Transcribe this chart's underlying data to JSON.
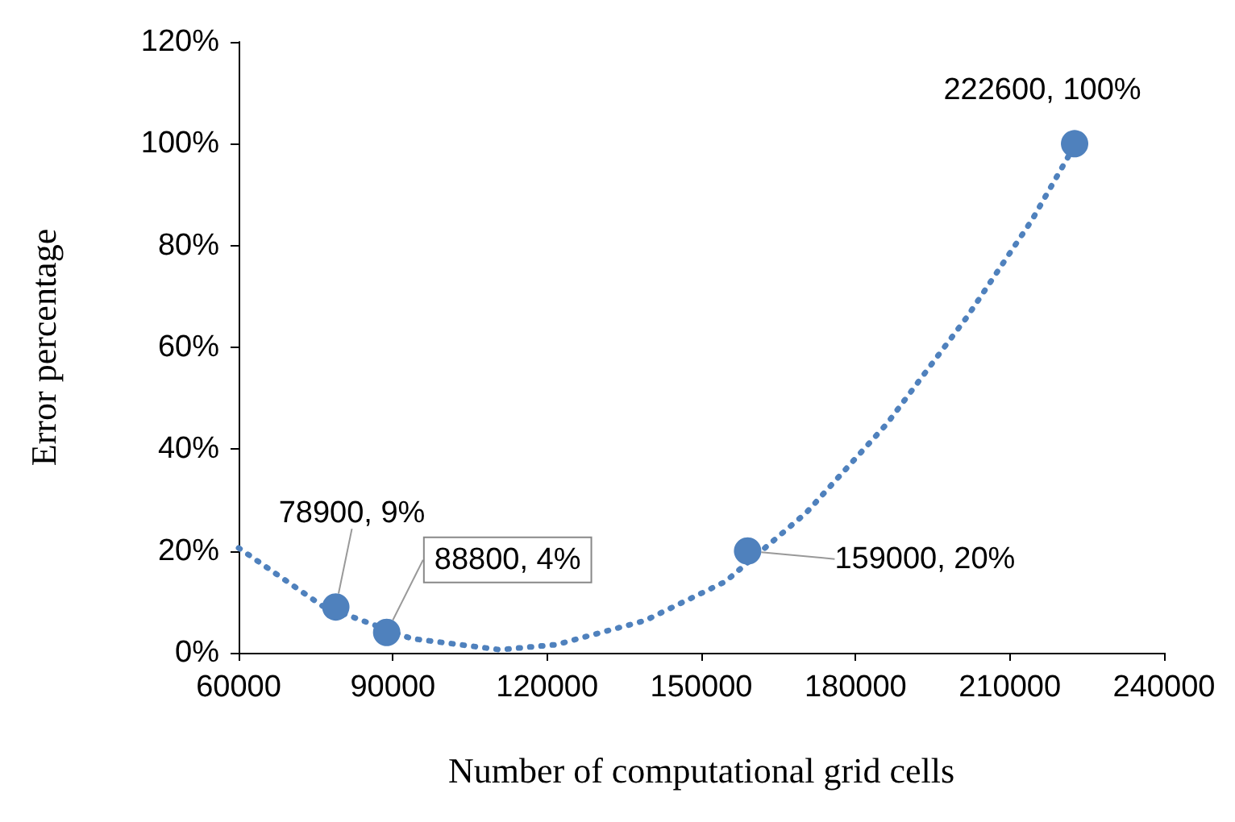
{
  "chart_data": {
    "type": "scatter",
    "xlabel": "Number of computational grid cells",
    "ylabel": "Error percentage",
    "series": [
      {
        "type": "line",
        "color": "#4f81bd",
        "line_style": "dotted",
        "marker": "none",
        "x": [
          60000,
          76300,
          93550,
          110800,
          121800,
          139000,
          154700,
          170400,
          186100,
          201700,
          214300,
          222800
        ],
        "values": [
          20.6,
          9.2,
          2.8,
          0.6,
          1.6,
          6.3,
          14,
          27.5,
          45,
          66,
          85,
          100
        ]
      },
      {
        "color": "#4f81bd",
        "marker": "circle",
        "x": [
          78900,
          88800,
          159000,
          222600
        ],
        "values": [
          9,
          4,
          20,
          100
        ],
        "value_labels": [
          "78900, 9%",
          "88800, 4%",
          "159000, 20%",
          "222600, 100%"
        ]
      }
    ],
    "xlim": [
      60000,
      240000
    ],
    "xticks": [
      60000,
      90000,
      120000,
      150000,
      180000,
      210000,
      240000
    ],
    "ylim": [
      0,
      120
    ],
    "yticks": [
      {
        "value": 0,
        "label": "0%"
      },
      {
        "value": 20,
        "label": "20%"
      },
      {
        "value": 40,
        "label": "40%"
      },
      {
        "value": 60,
        "label": "60%"
      },
      {
        "value": 80,
        "label": "80%"
      },
      {
        "value": 100,
        "label": "100%"
      },
      {
        "value": 120,
        "label": "120%"
      }
    ],
    "grid": false
  }
}
